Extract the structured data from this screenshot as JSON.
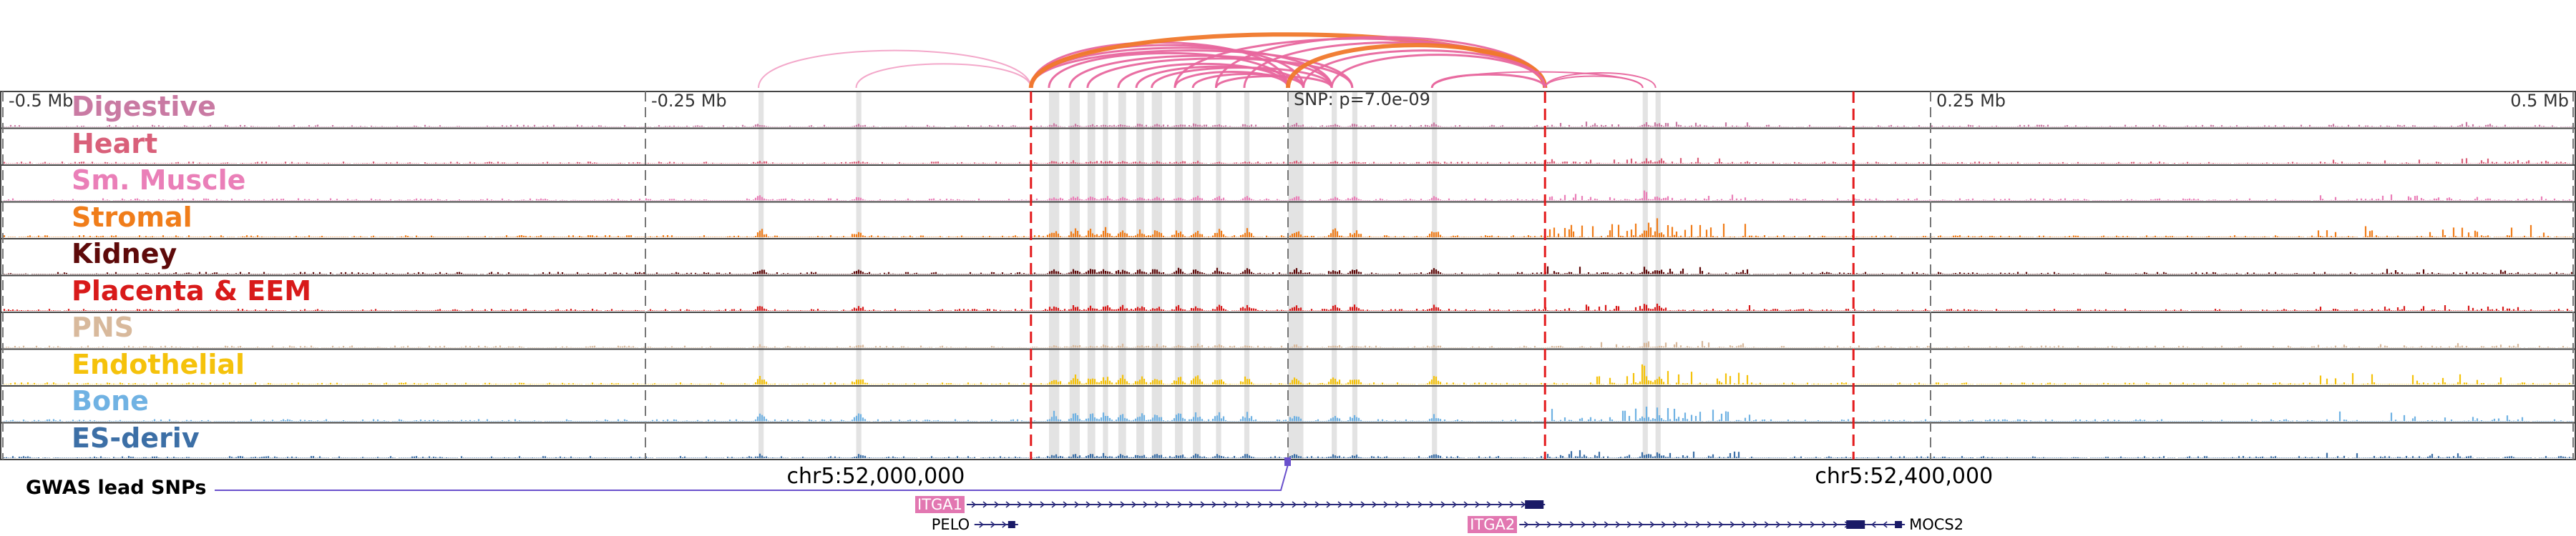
{
  "browser": {
    "region": "chr5 around ITGA1 / ITGA2",
    "rel_range_mb": [
      -0.5,
      0.5
    ],
    "tick_marks_mb": [
      -0.5,
      -0.25,
      0,
      0.25,
      0.5
    ],
    "tick_labels": [
      {
        "mb": -0.5,
        "text": "-0.5 Mb"
      },
      {
        "mb": -0.25,
        "text": "-0.25 Mb"
      },
      {
        "mb": 0.25,
        "text": "0.25 Mb"
      },
      {
        "mb": 0.5,
        "text": "0.5 Mb"
      }
    ],
    "snp_label": "SNP: p=7.0e-09",
    "coord_labels": [
      {
        "mb": -0.195,
        "text": "chr5:52,000,000"
      },
      {
        "mb": 0.205,
        "text": "chr5:52,400,000"
      }
    ],
    "gwas_label": "GWAS lead SNPs",
    "gwas_color": "#6a51cc",
    "snp_mb": 0.0,
    "red_markers_mb": [
      -0.1,
      0.1,
      0.22
    ],
    "highlight_regions_mb": [
      [
        -0.206,
        -0.204
      ],
      [
        -0.168,
        -0.166
      ],
      [
        -0.093,
        -0.089
      ],
      [
        -0.085,
        -0.081
      ],
      [
        -0.078,
        -0.075
      ],
      [
        -0.072,
        -0.07
      ],
      [
        -0.066,
        -0.063
      ],
      [
        -0.059,
        -0.056
      ],
      [
        -0.053,
        -0.049
      ],
      [
        -0.044,
        -0.041
      ],
      [
        -0.037,
        -0.034
      ],
      [
        -0.028,
        -0.026
      ],
      [
        -0.017,
        -0.015
      ],
      [
        0.0,
        0.006
      ],
      [
        0.017,
        0.019
      ],
      [
        0.025,
        0.027
      ],
      [
        0.056,
        0.058
      ],
      [
        0.138,
        0.14
      ],
      [
        0.143,
        0.145
      ]
    ]
  },
  "loops": [
    {
      "start": -0.206,
      "end": -0.1,
      "height": 0.7,
      "color": "#f2a3c7",
      "weight": 2
    },
    {
      "start": -0.168,
      "end": -0.1,
      "height": 0.45,
      "color": "#f2a3c7",
      "weight": 2
    },
    {
      "start": -0.1,
      "end": 0.0,
      "height": 0.85,
      "color": "#e8679e",
      "weight": 3
    },
    {
      "start": -0.1,
      "end": 0.006,
      "height": 0.8,
      "color": "#e8679e",
      "weight": 3
    },
    {
      "start": -0.1,
      "end": 0.017,
      "height": 0.75,
      "color": "#e8679e",
      "weight": 3
    },
    {
      "start": -0.1,
      "end": 0.025,
      "height": 0.7,
      "color": "#e8679e",
      "weight": 3
    },
    {
      "start": -0.1,
      "end": 0.1,
      "height": 1.0,
      "color": "#f0782b",
      "weight": 6
    },
    {
      "start": -0.093,
      "end": 0.0,
      "height": 0.65,
      "color": "#e8679e",
      "weight": 3
    },
    {
      "start": -0.085,
      "end": 0.017,
      "height": 0.6,
      "color": "#e8679e",
      "weight": 3
    },
    {
      "start": -0.078,
      "end": 0.025,
      "height": 0.55,
      "color": "#e8679e",
      "weight": 3
    },
    {
      "start": -0.066,
      "end": 0.0,
      "height": 0.45,
      "color": "#e8679e",
      "weight": 3
    },
    {
      "start": -0.059,
      "end": 0.006,
      "height": 0.4,
      "color": "#e8679e",
      "weight": 3
    },
    {
      "start": -0.053,
      "end": 0.017,
      "height": 0.38,
      "color": "#e8679e",
      "weight": 3
    },
    {
      "start": -0.044,
      "end": 0.0,
      "height": 0.3,
      "color": "#e8679e",
      "weight": 3
    },
    {
      "start": -0.037,
      "end": 0.006,
      "height": 0.26,
      "color": "#e8679e",
      "weight": 3
    },
    {
      "start": -0.028,
      "end": 0.017,
      "height": 0.22,
      "color": "#e8679e",
      "weight": 3
    },
    {
      "start": -0.044,
      "end": 0.1,
      "height": 0.92,
      "color": "#e8679e",
      "weight": 3
    },
    {
      "start": -0.028,
      "end": 0.1,
      "height": 0.95,
      "color": "#e8679e",
      "weight": 3
    },
    {
      "start": -0.017,
      "end": 0.1,
      "height": 0.85,
      "color": "#e8679e",
      "weight": 3
    },
    {
      "start": 0.0,
      "end": 0.1,
      "height": 0.8,
      "color": "#f0782b",
      "weight": 6
    },
    {
      "start": 0.006,
      "end": 0.1,
      "height": 0.7,
      "color": "#e8679e",
      "weight": 3
    },
    {
      "start": 0.017,
      "end": 0.1,
      "height": 0.62,
      "color": "#e8679e",
      "weight": 3
    },
    {
      "start": 0.056,
      "end": 0.1,
      "height": 0.25,
      "color": "#e8679e",
      "weight": 3
    },
    {
      "start": 0.056,
      "end": 0.138,
      "height": 0.3,
      "color": "#e8679e",
      "weight": 2
    },
    {
      "start": 0.1,
      "end": 0.143,
      "height": 0.28,
      "color": "#e8679e",
      "weight": 2
    },
    {
      "start": 0.1,
      "end": 0.138,
      "height": 0.22,
      "color": "#e8679e",
      "weight": 2
    }
  ],
  "tracks": [
    {
      "label": "Digestive",
      "color": "#c97aa3",
      "level": 0.14,
      "peakiness": 0.3
    },
    {
      "label": "Heart",
      "color": "#d9607a",
      "level": 0.12,
      "peakiness": 0.3
    },
    {
      "label": "Sm. Muscle",
      "color": "#ea7fb8",
      "level": 0.2,
      "peakiness": 0.4
    },
    {
      "label": "Stromal",
      "color": "#f07d1a",
      "level": 0.45,
      "peakiness": 0.8
    },
    {
      "label": "Kidney",
      "color": "#5e0a0a",
      "level": 0.28,
      "peakiness": 0.4
    },
    {
      "label": "Placenta & EEM",
      "color": "#d81a1a",
      "level": 0.3,
      "peakiness": 0.4
    },
    {
      "label": "PNS",
      "color": "#d8b99c",
      "level": 0.12,
      "peakiness": 0.3
    },
    {
      "label": "Endothelial",
      "color": "#f5c20b",
      "level": 0.45,
      "peakiness": 0.8
    },
    {
      "label": "Bone",
      "color": "#70b2e3",
      "level": 0.45,
      "peakiness": 0.8
    },
    {
      "label": "ES-deriv",
      "color": "#3c6fa6",
      "level": 0.2,
      "peakiness": 0.4
    }
  ],
  "genes": [
    {
      "name": "ITGA1",
      "start": -0.125,
      "end": 0.1,
      "strand": "+",
      "highlighted": true,
      "tag_color": "#e277b1",
      "row": 0
    },
    {
      "name": "PELO",
      "start": -0.122,
      "end": -0.105,
      "strand": "+",
      "highlighted": false,
      "row": 1
    },
    {
      "name": "ITGA2",
      "start": 0.09,
      "end": 0.225,
      "strand": "+",
      "highlighted": true,
      "tag_color": "#e277b1",
      "row": 1
    },
    {
      "name": "MOCS2",
      "start": 0.225,
      "end": 0.24,
      "strand": "-",
      "highlighted": false,
      "row": 1
    }
  ]
}
